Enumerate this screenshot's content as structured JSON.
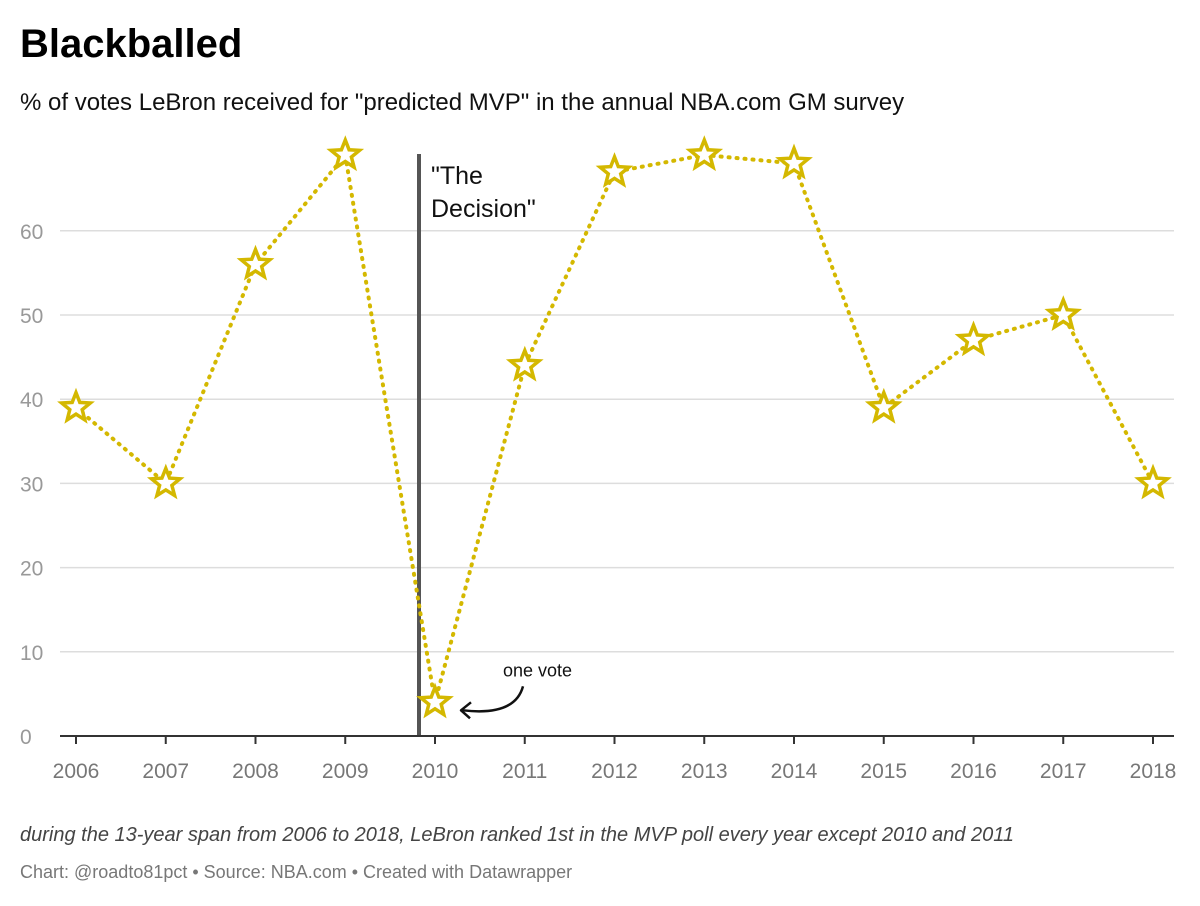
{
  "chart_data": {
    "type": "line",
    "title": "Blackballed",
    "subtitle": "% of votes LeBron received for \"predicted MVP\" in the annual NBA.com GM survey",
    "x": [
      "2006",
      "2007",
      "2008",
      "2009",
      "2010",
      "2011",
      "2012",
      "2013",
      "2014",
      "2015",
      "2016",
      "2017",
      "2018"
    ],
    "series": [
      {
        "values": [
          39,
          30,
          56,
          69,
          4,
          44,
          67,
          69,
          68,
          39,
          47,
          50,
          30
        ]
      }
    ],
    "y_ticks": [
      "0",
      "10",
      "20",
      "30",
      "40",
      "50",
      "60"
    ],
    "ylim": [
      0,
      70
    ],
    "grid": true,
    "marker": "star",
    "line_style": "dotted",
    "colors": {
      "series": "#d4b800",
      "event_line": "#555555",
      "gridline": "#dddddd",
      "axis": "#333333",
      "tick_label": "#999999"
    },
    "annotations": [
      {
        "x": "2010",
        "position": "before",
        "label_lines": [
          "\"The",
          "Decision\""
        ]
      },
      {
        "x": "2010",
        "y": 4,
        "label": "one vote"
      }
    ],
    "footnote": "during the 13-year span from 2006 to 2018, LeBron ranked 1st in the MVP poll every year except 2010 and 2011",
    "credit": "Chart: @roadto81pct • Source: NBA.com • Created with Datawrapper"
  }
}
